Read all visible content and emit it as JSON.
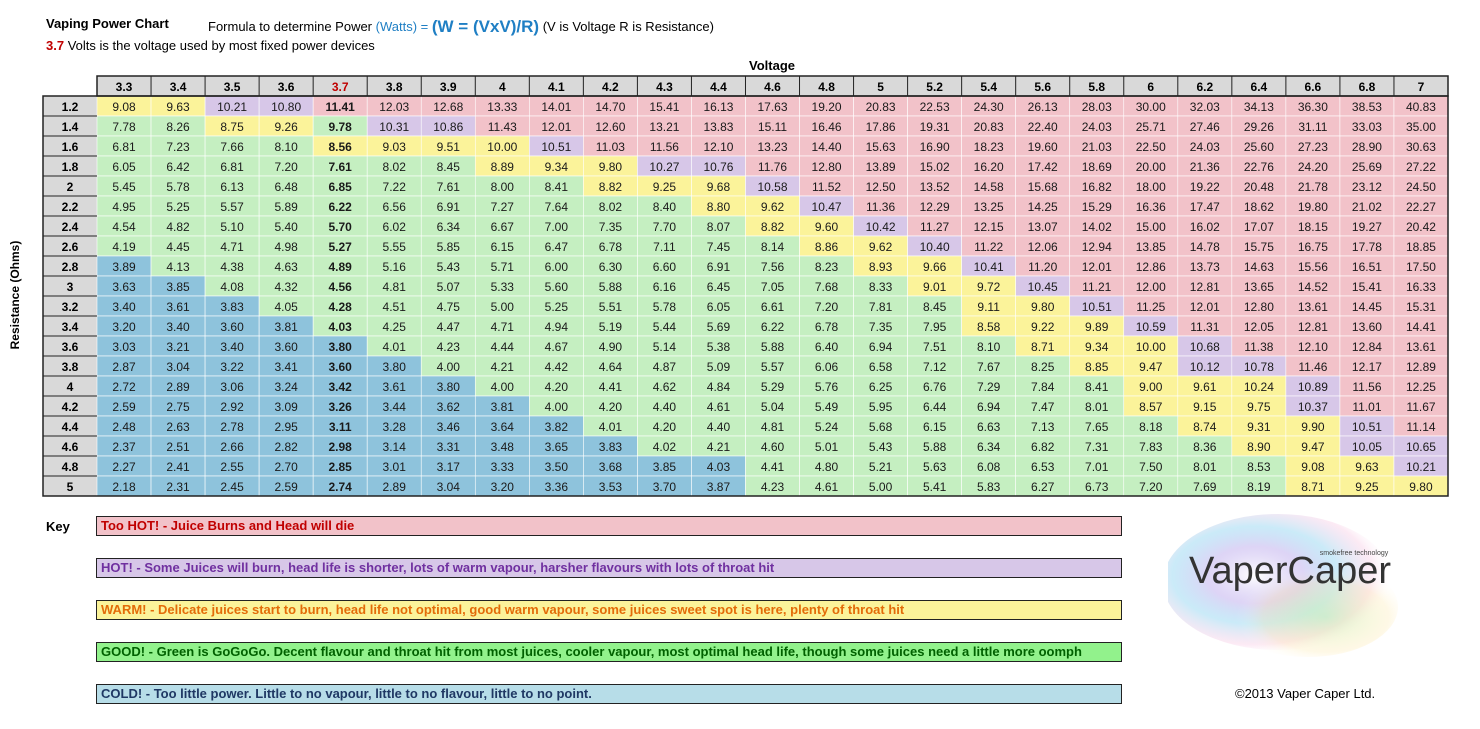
{
  "header": {
    "title": "Vaping Power Chart",
    "formula_prefix": "Formula to determine Power",
    "formula_watts": "(Watts) =",
    "formula_main": "(W = (VxV)/R)",
    "formula_note": "(V is Voltage R is Resistance)",
    "fixed_voltage": "3.7",
    "fixed_text": "Volts is the voltage used by most fixed power devices"
  },
  "colors": {
    "HOT2": "#f2c2c9",
    "HOT1": "#d7c7e8",
    "WARM": "#fbf39a",
    "GOOD": "#c5efc1",
    "COLD": "#8ec3dc"
  },
  "chart_data": {
    "type": "table",
    "title": "Vaping Power Chart",
    "xlabel": "Voltage",
    "ylabel": "Resistance (Ohms)",
    "highlight_voltage": "3.7",
    "voltages": [
      "3.3",
      "3.4",
      "3.5",
      "3.6",
      "3.7",
      "3.8",
      "3.9",
      "4",
      "4.1",
      "4.2",
      "4.3",
      "4.4",
      "4.6",
      "4.8",
      "5",
      "5.2",
      "5.4",
      "5.6",
      "5.8",
      "6",
      "6.2",
      "6.4",
      "6.6",
      "6.8",
      "7"
    ],
    "resistances": [
      "1.2",
      "1.4",
      "1.6",
      "1.8",
      "2",
      "2.2",
      "2.4",
      "2.6",
      "2.8",
      "3",
      "3.2",
      "3.4",
      "3.6",
      "3.8",
      "4",
      "4.2",
      "4.4",
      "4.6",
      "4.8",
      "5"
    ],
    "values": [
      [
        "9.08",
        "9.63",
        "10.21",
        "10.80",
        "11.41",
        "12.03",
        "12.68",
        "13.33",
        "14.01",
        "14.70",
        "15.41",
        "16.13",
        "17.63",
        "19.20",
        "20.83",
        "22.53",
        "24.30",
        "26.13",
        "28.03",
        "30.00",
        "32.03",
        "34.13",
        "36.30",
        "38.53",
        "40.83"
      ],
      [
        "7.78",
        "8.26",
        "8.75",
        "9.26",
        "9.78",
        "10.31",
        "10.86",
        "11.43",
        "12.01",
        "12.60",
        "13.21",
        "13.83",
        "15.11",
        "16.46",
        "17.86",
        "19.31",
        "20.83",
        "22.40",
        "24.03",
        "25.71",
        "27.46",
        "29.26",
        "31.11",
        "33.03",
        "35.00"
      ],
      [
        "6.81",
        "7.23",
        "7.66",
        "8.10",
        "8.56",
        "9.03",
        "9.51",
        "10.00",
        "10.51",
        "11.03",
        "11.56",
        "12.10",
        "13.23",
        "14.40",
        "15.63",
        "16.90",
        "18.23",
        "19.60",
        "21.03",
        "22.50",
        "24.03",
        "25.60",
        "27.23",
        "28.90",
        "30.63"
      ],
      [
        "6.05",
        "6.42",
        "6.81",
        "7.20",
        "7.61",
        "8.02",
        "8.45",
        "8.89",
        "9.34",
        "9.80",
        "10.27",
        "10.76",
        "11.76",
        "12.80",
        "13.89",
        "15.02",
        "16.20",
        "17.42",
        "18.69",
        "20.00",
        "21.36",
        "22.76",
        "24.20",
        "25.69",
        "27.22"
      ],
      [
        "5.45",
        "5.78",
        "6.13",
        "6.48",
        "6.85",
        "7.22",
        "7.61",
        "8.00",
        "8.41",
        "8.82",
        "9.25",
        "9.68",
        "10.58",
        "11.52",
        "12.50",
        "13.52",
        "14.58",
        "15.68",
        "16.82",
        "18.00",
        "19.22",
        "20.48",
        "21.78",
        "23.12",
        "24.50"
      ],
      [
        "4.95",
        "5.25",
        "5.57",
        "5.89",
        "6.22",
        "6.56",
        "6.91",
        "7.27",
        "7.64",
        "8.02",
        "8.40",
        "8.80",
        "9.62",
        "10.47",
        "11.36",
        "12.29",
        "13.25",
        "14.25",
        "15.29",
        "16.36",
        "17.47",
        "18.62",
        "19.80",
        "21.02",
        "22.27"
      ],
      [
        "4.54",
        "4.82",
        "5.10",
        "5.40",
        "5.70",
        "6.02",
        "6.34",
        "6.67",
        "7.00",
        "7.35",
        "7.70",
        "8.07",
        "8.82",
        "9.60",
        "10.42",
        "11.27",
        "12.15",
        "13.07",
        "14.02",
        "15.00",
        "16.02",
        "17.07",
        "18.15",
        "19.27",
        "20.42"
      ],
      [
        "4.19",
        "4.45",
        "4.71",
        "4.98",
        "5.27",
        "5.55",
        "5.85",
        "6.15",
        "6.47",
        "6.78",
        "7.11",
        "7.45",
        "8.14",
        "8.86",
        "9.62",
        "10.40",
        "11.22",
        "12.06",
        "12.94",
        "13.85",
        "14.78",
        "15.75",
        "16.75",
        "17.78",
        "18.85"
      ],
      [
        "3.89",
        "4.13",
        "4.38",
        "4.63",
        "4.89",
        "5.16",
        "5.43",
        "5.71",
        "6.00",
        "6.30",
        "6.60",
        "6.91",
        "7.56",
        "8.23",
        "8.93",
        "9.66",
        "10.41",
        "11.20",
        "12.01",
        "12.86",
        "13.73",
        "14.63",
        "15.56",
        "16.51",
        "17.50"
      ],
      [
        "3.63",
        "3.85",
        "4.08",
        "4.32",
        "4.56",
        "4.81",
        "5.07",
        "5.33",
        "5.60",
        "5.88",
        "6.16",
        "6.45",
        "7.05",
        "7.68",
        "8.33",
        "9.01",
        "9.72",
        "10.45",
        "11.21",
        "12.00",
        "12.81",
        "13.65",
        "14.52",
        "15.41",
        "16.33"
      ],
      [
        "3.40",
        "3.61",
        "3.83",
        "4.05",
        "4.28",
        "4.51",
        "4.75",
        "5.00",
        "5.25",
        "5.51",
        "5.78",
        "6.05",
        "6.61",
        "7.20",
        "7.81",
        "8.45",
        "9.11",
        "9.80",
        "10.51",
        "11.25",
        "12.01",
        "12.80",
        "13.61",
        "14.45",
        "15.31"
      ],
      [
        "3.20",
        "3.40",
        "3.60",
        "3.81",
        "4.03",
        "4.25",
        "4.47",
        "4.71",
        "4.94",
        "5.19",
        "5.44",
        "5.69",
        "6.22",
        "6.78",
        "7.35",
        "7.95",
        "8.58",
        "9.22",
        "9.89",
        "10.59",
        "11.31",
        "12.05",
        "12.81",
        "13.60",
        "14.41"
      ],
      [
        "3.03",
        "3.21",
        "3.40",
        "3.60",
        "3.80",
        "4.01",
        "4.23",
        "4.44",
        "4.67",
        "4.90",
        "5.14",
        "5.38",
        "5.88",
        "6.40",
        "6.94",
        "7.51",
        "8.10",
        "8.71",
        "9.34",
        "10.00",
        "10.68",
        "11.38",
        "12.10",
        "12.84",
        "13.61"
      ],
      [
        "2.87",
        "3.04",
        "3.22",
        "3.41",
        "3.60",
        "3.80",
        "4.00",
        "4.21",
        "4.42",
        "4.64",
        "4.87",
        "5.09",
        "5.57",
        "6.06",
        "6.58",
        "7.12",
        "7.67",
        "8.25",
        "8.85",
        "9.47",
        "10.12",
        "10.78",
        "11.46",
        "12.17",
        "12.89"
      ],
      [
        "2.72",
        "2.89",
        "3.06",
        "3.24",
        "3.42",
        "3.61",
        "3.80",
        "4.00",
        "4.20",
        "4.41",
        "4.62",
        "4.84",
        "5.29",
        "5.76",
        "6.25",
        "6.76",
        "7.29",
        "7.84",
        "8.41",
        "9.00",
        "9.61",
        "10.24",
        "10.89",
        "11.56",
        "12.25"
      ],
      [
        "2.59",
        "2.75",
        "2.92",
        "3.09",
        "3.26",
        "3.44",
        "3.62",
        "3.81",
        "4.00",
        "4.20",
        "4.40",
        "4.61",
        "5.04",
        "5.49",
        "5.95",
        "6.44",
        "6.94",
        "7.47",
        "8.01",
        "8.57",
        "9.15",
        "9.75",
        "10.37",
        "11.01",
        "11.67"
      ],
      [
        "2.48",
        "2.63",
        "2.78",
        "2.95",
        "3.11",
        "3.28",
        "3.46",
        "3.64",
        "3.82",
        "4.01",
        "4.20",
        "4.40",
        "4.81",
        "5.24",
        "5.68",
        "6.15",
        "6.63",
        "7.13",
        "7.65",
        "8.18",
        "8.74",
        "9.31",
        "9.90",
        "10.51",
        "11.14"
      ],
      [
        "2.37",
        "2.51",
        "2.66",
        "2.82",
        "2.98",
        "3.14",
        "3.31",
        "3.48",
        "3.65",
        "3.83",
        "4.02",
        "4.21",
        "4.60",
        "5.01",
        "5.43",
        "5.88",
        "6.34",
        "6.82",
        "7.31",
        "7.83",
        "8.36",
        "8.90",
        "9.47",
        "10.05",
        "10.65"
      ],
      [
        "2.27",
        "2.41",
        "2.55",
        "2.70",
        "2.85",
        "3.01",
        "3.17",
        "3.33",
        "3.50",
        "3.68",
        "3.85",
        "4.03",
        "4.41",
        "4.80",
        "5.21",
        "5.63",
        "6.08",
        "6.53",
        "7.01",
        "7.50",
        "8.01",
        "8.53",
        "9.08",
        "9.63",
        "10.21"
      ],
      [
        "2.18",
        "2.31",
        "2.45",
        "2.59",
        "2.74",
        "2.89",
        "3.04",
        "3.20",
        "3.36",
        "3.53",
        "3.70",
        "3.87",
        "4.23",
        "4.61",
        "5.00",
        "5.41",
        "5.83",
        "6.27",
        "6.73",
        "7.20",
        "7.69",
        "8.19",
        "8.71",
        "9.25",
        "9.80"
      ]
    ],
    "zones": [
      "WWHHHHHHHHHHHHHHHHHHHHHHH",
      "GGWWGHHHHHHHHHHHHHHHHHHHH",
      "GGGGWWWWHHHHHHHHHHHHHHHHH",
      "GGGGGGGWWWHHHHHHHHHHHHHHH",
      "GGGGGGGGGWWWHHHHHHHHHHHHH",
      "GGGGGGGGGGGWWHHHHHHHHHHHH",
      "GGGGGGGGGGGGWWHHHHHHHHHHH",
      "GGGGGGGGGGGGGWWHHHHHHHHHH",
      "CGGGGGGGGGGGGGWWHHHHHHHHH",
      "CCGGGGGGGGGGGGGWWHHHHHHHH",
      "CCCGGGGGGGGGGGGGWWHHHHHHH",
      "CCCCGGGGGGGGGGGGWWWHHHHHH",
      "CCCCCGGGGGGGGGGGGWWWHHHHH",
      "CCCCCCGGGGGGGGGGGGWWHHHHH",
      "CCCCCCCGGGGGGGGGGGGWWWHHH",
      "CCCCCCCCGGGGGGGGGGGWWWHHH",
      "CCCCCCCCCGGGGGGGGGGGWWWHH",
      "CCCCCCCCCCGGGGGGGGGGGWWHH",
      "CCCCCCCCCCCCGGGGGGGGGGWWH",
      "CCCCCCCCCCCCGGGGGGGGGGWWW"
    ]
  },
  "key": {
    "label": "Key",
    "items": [
      {
        "id": "too-hot",
        "text": "Too HOT! - Juice Burns and Head will die",
        "bg": "#f2c2c9",
        "color": "#c00000"
      },
      {
        "id": "hot",
        "text": "HOT!  - Some Juices will burn, head life is shorter, lots of warm vapour, harsher flavours with lots of throat hit",
        "bg": "#d7c7e8",
        "color": "#7030a0"
      },
      {
        "id": "warm",
        "text": "WARM! - Delicate juices start to burn, head life not optimal, good warm vapour, some juices sweet spot is here, plenty of throat hit",
        "bg": "#fbf39a",
        "color": "#e36c09"
      },
      {
        "id": "good",
        "text": "GOOD! - Green is GoGoGo.  Decent flavour and throat hit from most juices, cooler vapour, most optimal head life, though some juices need a little more oomph",
        "bg": "#92f28c",
        "color": "#006100"
      },
      {
        "id": "cold",
        "text": "COLD! - Too little power.  Little to no vapour, little to no flavour, little to no point.",
        "bg": "#b7dde8",
        "color": "#1f3864"
      }
    ]
  },
  "logo": {
    "name": "VaperCaper",
    "tagline": "smokefree technology"
  },
  "footer": {
    "copyright": "©2013 Vaper Caper Ltd."
  }
}
